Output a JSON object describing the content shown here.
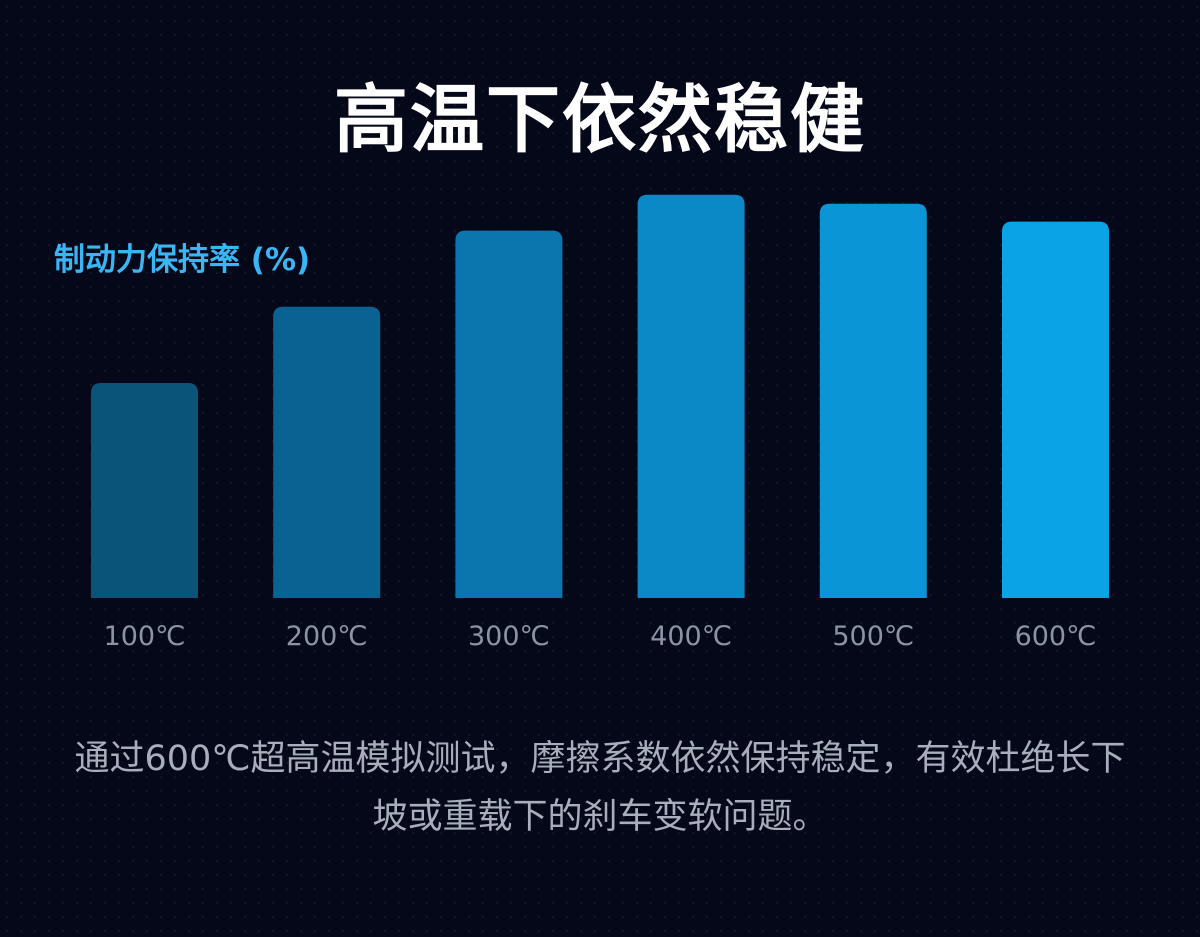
{
  "title": "高温下依然稳健",
  "caption": "通过600℃超高温模拟测试，摩擦系数依然保持稳定，有效杜绝长下坡或重载下的刹车变软问题。",
  "chart_data": {
    "type": "bar",
    "ylabel": "制动力保持率 (%)",
    "xlabel": "",
    "categories": [
      "100℃",
      "200℃",
      "300℃",
      "400℃",
      "500℃",
      "600℃"
    ],
    "values": [
      48,
      65,
      82,
      90,
      88,
      84
    ],
    "ylim": [
      0,
      100
    ],
    "grid": false,
    "legend": "none",
    "colors": [
      "#0a5479",
      "#0a6293",
      "#0b76ad",
      "#0b88c6",
      "#0a96d6",
      "#0aa3e5"
    ],
    "tick_color": "#8b93a4"
  }
}
